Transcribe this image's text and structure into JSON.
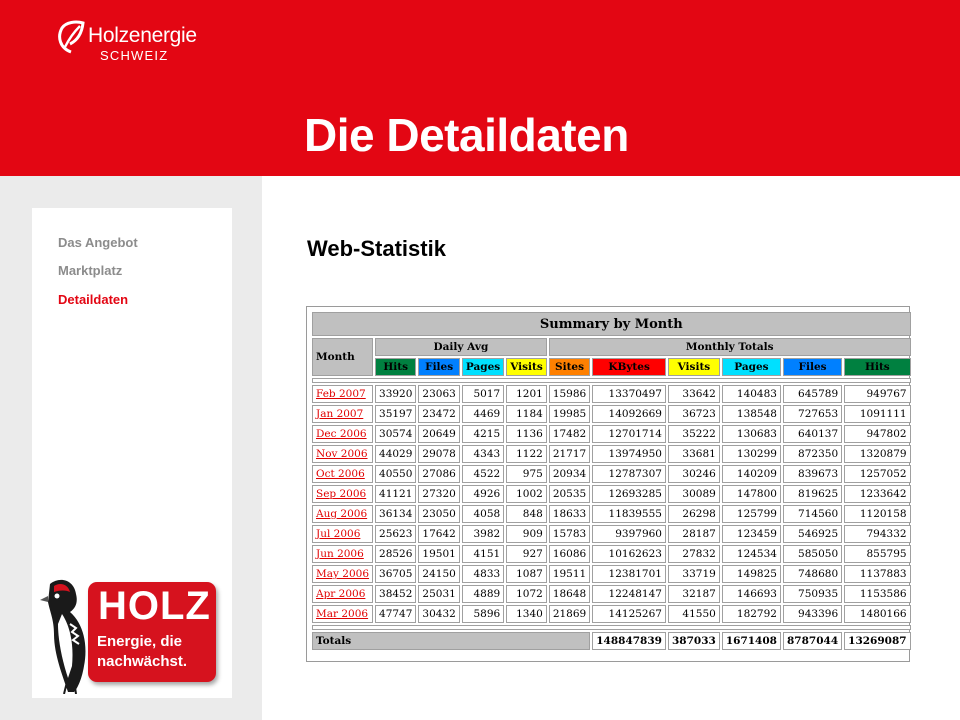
{
  "brand": {
    "name": "Holzenergie",
    "sub": "SCHWEIZ",
    "header_color": "#e30613"
  },
  "page_title": "Die Detaildaten",
  "nav": [
    {
      "label": "Das Angebot",
      "active": false
    },
    {
      "label": "Marktplatz",
      "active": false
    },
    {
      "label": "Detaildaten",
      "active": true
    }
  ],
  "badge": {
    "holz": "HOLZ",
    "line1": "Energie, die",
    "line2": "nachwächst."
  },
  "section_title": "Web-Statistik",
  "stats": {
    "title": "Summary by Month",
    "month_header": "Month",
    "daily_avg_header": "Daily Avg",
    "monthly_totals_header": "Monthly Totals",
    "daily_cols": [
      {
        "label": "Hits",
        "color": "#008040"
      },
      {
        "label": "Files",
        "color": "#0080ff"
      },
      {
        "label": "Pages",
        "color": "#00e0ff"
      },
      {
        "label": "Visits",
        "color": "#ffff00"
      }
    ],
    "monthly_cols": [
      {
        "label": "Sites",
        "color": "#ff8000"
      },
      {
        "label": "KBytes",
        "color": "#ff0000"
      },
      {
        "label": "Visits",
        "color": "#ffff00"
      },
      {
        "label": "Pages",
        "color": "#00e0ff"
      },
      {
        "label": "Files",
        "color": "#0080ff"
      },
      {
        "label": "Hits",
        "color": "#008040"
      }
    ],
    "rows": [
      [
        "Feb 2007",
        "33920",
        "23063",
        "5017",
        "1201",
        "15986",
        "13370497",
        "33642",
        "140483",
        "645789",
        "949767"
      ],
      [
        "Jan 2007",
        "35197",
        "23472",
        "4469",
        "1184",
        "19985",
        "14092669",
        "36723",
        "138548",
        "727653",
        "1091111"
      ],
      [
        "Dec 2006",
        "30574",
        "20649",
        "4215",
        "1136",
        "17482",
        "12701714",
        "35222",
        "130683",
        "640137",
        "947802"
      ],
      [
        "Nov 2006",
        "44029",
        "29078",
        "4343",
        "1122",
        "21717",
        "13974950",
        "33681",
        "130299",
        "872350",
        "1320879"
      ],
      [
        "Oct 2006",
        "40550",
        "27086",
        "4522",
        "975",
        "20934",
        "12787307",
        "30246",
        "140209",
        "839673",
        "1257052"
      ],
      [
        "Sep 2006",
        "41121",
        "27320",
        "4926",
        "1002",
        "20535",
        "12693285",
        "30089",
        "147800",
        "819625",
        "1233642"
      ],
      [
        "Aug 2006",
        "36134",
        "23050",
        "4058",
        "848",
        "18633",
        "11839555",
        "26298",
        "125799",
        "714560",
        "1120158"
      ],
      [
        "Jul 2006",
        "25623",
        "17642",
        "3982",
        "909",
        "15783",
        "9397960",
        "28187",
        "123459",
        "546925",
        "794332"
      ],
      [
        "Jun 2006",
        "28526",
        "19501",
        "4151",
        "927",
        "16086",
        "10162623",
        "27832",
        "124534",
        "585050",
        "855795"
      ],
      [
        "May 2006",
        "36705",
        "24150",
        "4833",
        "1087",
        "19511",
        "12381701",
        "33719",
        "149825",
        "748680",
        "1137883"
      ],
      [
        "Apr 2006",
        "38452",
        "25031",
        "4889",
        "1072",
        "18648",
        "12248147",
        "32187",
        "146693",
        "750935",
        "1153586"
      ],
      [
        "Mar 2006",
        "47747",
        "30432",
        "5896",
        "1340",
        "21869",
        "14125267",
        "41550",
        "182792",
        "943396",
        "1480166"
      ]
    ],
    "totals": {
      "label": "Totals",
      "values": [
        "148847839",
        "387033",
        "1671408",
        "8787044",
        "13269087"
      ]
    }
  }
}
